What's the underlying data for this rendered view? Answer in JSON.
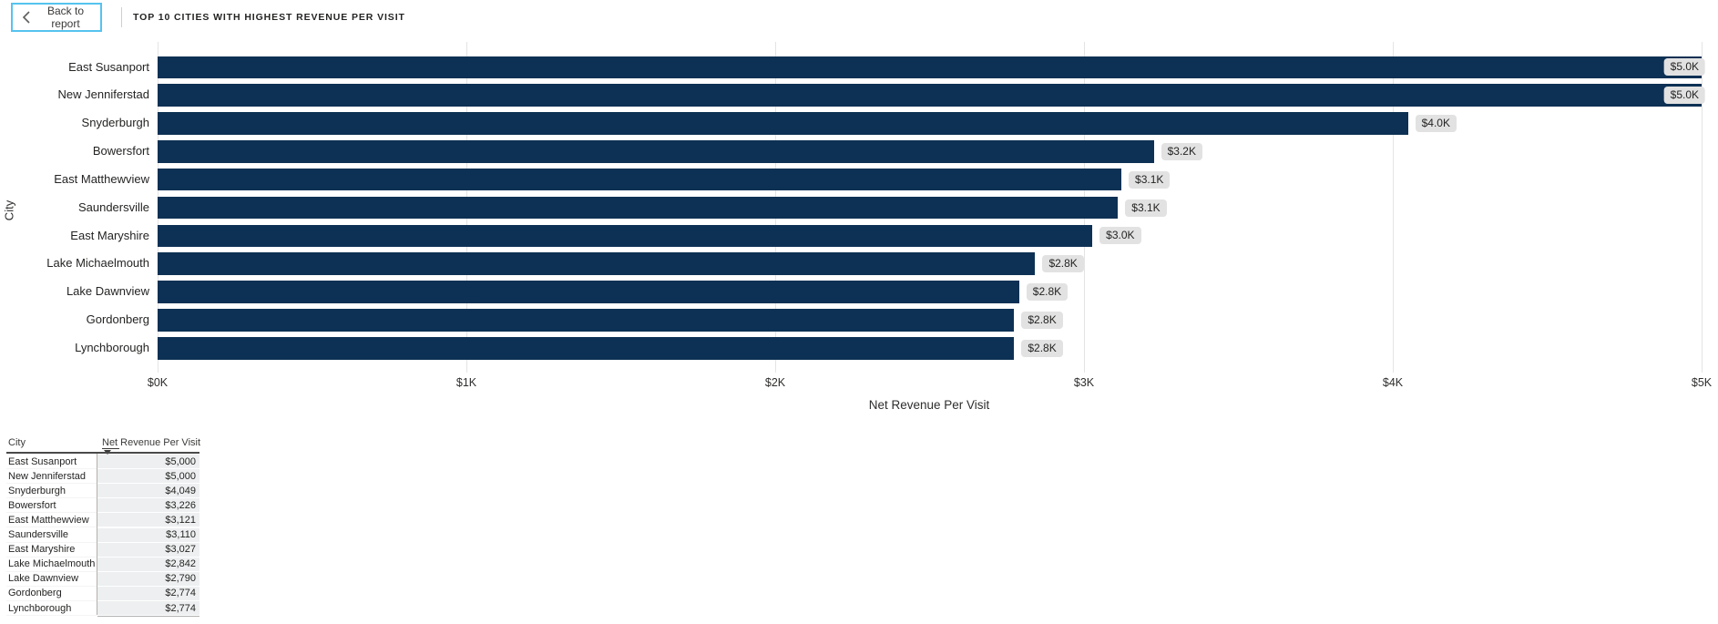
{
  "header": {
    "back_button_label": "Back to report",
    "title": "TOP 10 CITIES WITH HIGHEST REVENUE PER VISIT"
  },
  "chart_data": {
    "type": "bar",
    "orientation": "horizontal",
    "xlabel": "Net Revenue Per Visit",
    "ylabel": "City",
    "xlim": [
      0,
      5000
    ],
    "gridlines": true,
    "legend": false,
    "x_ticks": [
      {
        "value": 0,
        "label": "$0K"
      },
      {
        "value": 1000,
        "label": "$1K"
      },
      {
        "value": 2000,
        "label": "$2K"
      },
      {
        "value": 3000,
        "label": "$3K"
      },
      {
        "value": 4000,
        "label": "$4K"
      },
      {
        "value": 5000,
        "label": "$5K"
      }
    ],
    "categories": [
      "East Susanport",
      "New Jenniferstad",
      "Snyderburgh",
      "Bowersfort",
      "East Matthewview",
      "Saundersville",
      "East Maryshire",
      "Lake Michaelmouth",
      "Lake Dawnview",
      "Gordonberg",
      "Lynchborough"
    ],
    "values": [
      5000,
      5000,
      4049,
      3226,
      3121,
      3110,
      3027,
      2842,
      2790,
      2774,
      2774
    ],
    "bar_labels": [
      "$5.0K",
      "$5.0K",
      "$4.0K",
      "$3.2K",
      "$3.1K",
      "$3.1K",
      "$3.0K",
      "$2.8K",
      "$2.8K",
      "$2.8K",
      "$2.8K"
    ]
  },
  "table": {
    "columns": [
      "City",
      "Net Revenue Per Visit"
    ],
    "sort": {
      "column": "Net Revenue Per Visit",
      "direction": "descending"
    },
    "rows": [
      [
        "East Susanport",
        "$5,000"
      ],
      [
        "New Jenniferstad",
        "$5,000"
      ],
      [
        "Snyderburgh",
        "$4,049"
      ],
      [
        "Bowersfort",
        "$3,226"
      ],
      [
        "East Matthewview",
        "$3,121"
      ],
      [
        "Saundersville",
        "$3,110"
      ],
      [
        "East Maryshire",
        "$3,027"
      ],
      [
        "Lake Michaelmouth",
        "$2,842"
      ],
      [
        "Lake Dawnview",
        "$2,790"
      ],
      [
        "Gordonberg",
        "$2,774"
      ],
      [
        "Lynchborough",
        "$2,774"
      ]
    ]
  },
  "colors": {
    "bar": "#0d3154",
    "gridline": "#e4e4e4",
    "data_label_bg": "#e2e2e2",
    "back_button_border": "#55c3ef",
    "table_value_cell_bg": "#edeff0",
    "table_border": "#b3b1af",
    "header_rule": "#4a4a4a",
    "text": "#252423"
  }
}
